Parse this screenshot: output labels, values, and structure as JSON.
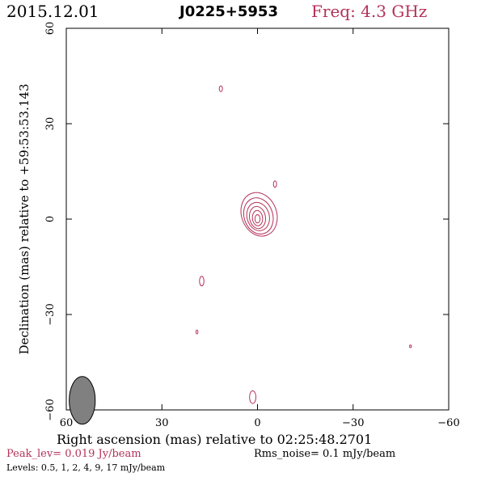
{
  "header": {
    "date": "2015.12.01",
    "source": "J0225+5953",
    "freq": "Freq: 4.3 GHz"
  },
  "chart_data": {
    "type": "contour",
    "xlabel": "Right ascension (mas) relative to 02:25:48.2701",
    "ylabel": "Declination (mas) relative to +59:53:53.143",
    "xlim": [
      60,
      -60
    ],
    "ylim": [
      -60,
      60
    ],
    "xticks": [
      60,
      30,
      0,
      -30,
      -60
    ],
    "yticks": [
      60,
      30,
      0,
      -30,
      -60
    ],
    "xtick_labels": [
      "60",
      "30",
      "0",
      "−30",
      "−60"
    ],
    "ytick_labels": [
      "60",
      "30",
      "0",
      "−30",
      "−60"
    ],
    "contour_color": "#b5315a",
    "core": {
      "x": 0,
      "y": 0
    },
    "peak_components": [
      {
        "x": -0.5,
        "y": 1.5,
        "rx": 5.5,
        "ry": 7.0,
        "rot": -20
      },
      {
        "x": -0.3,
        "y": 1.0,
        "rx": 4.5,
        "ry": 5.8,
        "rot": -18
      },
      {
        "x": -0.2,
        "y": 0.8,
        "rx": 3.5,
        "ry": 4.5,
        "rot": -15
      },
      {
        "x": 0.0,
        "y": 0.5,
        "rx": 2.5,
        "ry": 3.5,
        "rot": -10
      },
      {
        "x": 0.0,
        "y": 0.3,
        "rx": 1.6,
        "ry": 2.4,
        "rot": -5
      },
      {
        "x": 0.0,
        "y": 0.1,
        "rx": 0.8,
        "ry": 1.3,
        "rot": 0
      }
    ],
    "blobs": [
      {
        "x": 11.5,
        "y": 41.0,
        "rx": 0.5,
        "ry": 0.9
      },
      {
        "x": -5.5,
        "y": 11.0,
        "rx": 0.5,
        "ry": 1.0
      },
      {
        "x": 17.5,
        "y": -19.5,
        "rx": 0.7,
        "ry": 1.5
      },
      {
        "x": 19.0,
        "y": -35.5,
        "rx": 0.3,
        "ry": 0.6
      },
      {
        "x": -48.0,
        "y": -40.0,
        "rx": 0.3,
        "ry": 0.4
      },
      {
        "x": 1.5,
        "y": -56.0,
        "rx": 1.0,
        "ry": 2.0
      }
    ],
    "beam": {
      "x": 55.0,
      "y": -57.0,
      "rx": 1.2,
      "ry": 2.2,
      "color": "#808080"
    }
  },
  "footer": {
    "peak": "Peak_lev=  0.019 Jy/beam",
    "rms": "Rms_noise=  0.1 mJy/beam",
    "levels": "Levels: 0.5,   1,   2,   4,   9,   17 mJy/beam"
  }
}
